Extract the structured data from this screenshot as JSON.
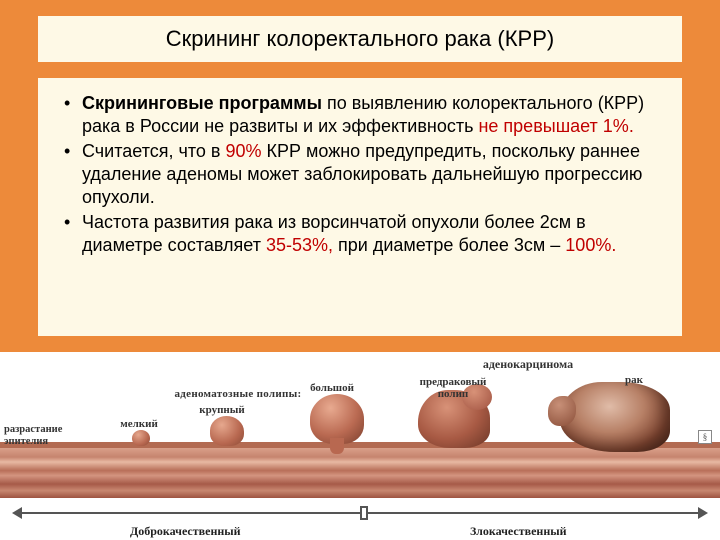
{
  "title": "Скрининг колоректального  рака (КРР)",
  "bullets": [
    {
      "segments": [
        {
          "t": "Скрининговые программы",
          "b": true
        },
        {
          "t": " по выявлению колоректального (КРР) рака в России не развиты и их эффективность "
        },
        {
          "t": "не превышает 1%.",
          "red": true
        }
      ]
    },
    {
      "segments": [
        {
          "t": "Считается, что в "
        },
        {
          "t": "90%",
          "red": true
        },
        {
          "t": " КРР можно предупредить, поскольку раннее удаление аденомы может заблокировать дальнейшую прогрессию опухоли."
        }
      ]
    },
    {
      "segments": [
        {
          "t": "Частота развития рака из ворсинчатой опухоли более 2см в диаметре составляет "
        },
        {
          "t": "35-53%,",
          "red": true
        },
        {
          "t": " при диаметре более 3см – "
        },
        {
          "t": "100%.",
          "red": true
        }
      ]
    }
  ],
  "diagram": {
    "group_label": "аденоматозные полипы:",
    "small": "мелкий",
    "medium": "крупный",
    "large": "большой",
    "precancer": "предраковый\nполип",
    "adenocarcinoma": "аденокарцинома",
    "cancer": "рак",
    "epithelium": "разрастание\nэпителия",
    "axis_left": "Доброкачественный",
    "axis_right": "Злокачественный",
    "corner": "§"
  }
}
